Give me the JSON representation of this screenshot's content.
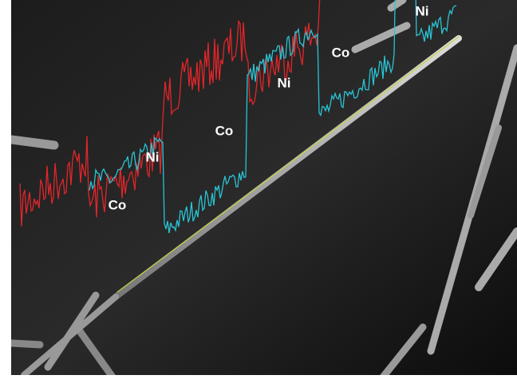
{
  "labels": [
    "Co",
    "Ni",
    "Co",
    "Ni",
    "Co",
    "Ni"
  ]
}
